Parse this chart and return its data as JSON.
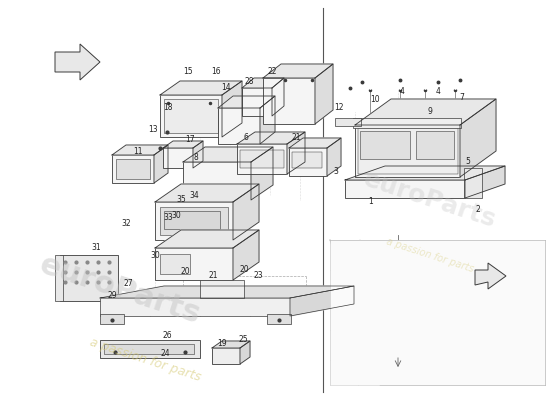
{
  "background_color": "#ffffff",
  "fig_width": 5.5,
  "fig_height": 4.0,
  "dpi": 100,
  "lc": "#3a3a3a",
  "lw": 0.6,
  "face": "#f5f5f5",
  "face2": "#ebebeb",
  "face3": "#e0e0e0",
  "watermark_text": "a passion for parts",
  "watermark_color": "#d4c870",
  "watermark_alpha": 0.55,
  "watermark_fontsize": 9,
  "watermark_rotation": -18,
  "logo_text": "euroParts",
  "logo_color": "#c0c0c0",
  "logo_alpha": 0.45,
  "logo_fontsize": 22,
  "logo_rotation": -18,
  "num_fs": 5.5,
  "num_color": "#222222"
}
